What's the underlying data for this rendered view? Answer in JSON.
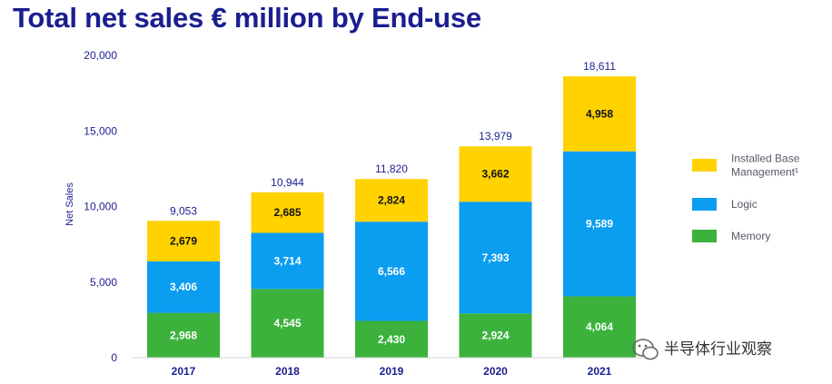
{
  "title": "Total net sales € million by End-use",
  "chart_data": {
    "type": "bar",
    "stacked": true,
    "title": "Total net sales € million by End-use",
    "xlabel": "",
    "ylabel": "Net Sales",
    "ylim": [
      0,
      20000
    ],
    "yticks": [
      "0",
      "5,000",
      "10,000",
      "15,000",
      "20,000"
    ],
    "categories": [
      "2017",
      "2018",
      "2019",
      "2020",
      "2021"
    ],
    "series": [
      {
        "name": "Memory",
        "color": "#3cb23c",
        "label_color": "#ffffff",
        "values": [
          2968,
          4545,
          2430,
          2924,
          4064
        ],
        "labels": [
          "2,968",
          "4,545",
          "2,430",
          "2,924",
          "4,064"
        ]
      },
      {
        "name": "Logic",
        "color": "#0a9df0",
        "label_color": "#ffffff",
        "values": [
          3406,
          3714,
          6566,
          7393,
          9589
        ],
        "labels": [
          "3,406",
          "3,714",
          "6,566",
          "7,393",
          "9,589"
        ]
      },
      {
        "name": "Installed Base Management",
        "name_lines": [
          "Installed Base",
          "Management¹"
        ],
        "color": "#ffd200",
        "label_color": "#111111",
        "values": [
          2679,
          2685,
          2824,
          3662,
          4958
        ],
        "labels": [
          "2,679",
          "2,685",
          "2,824",
          "3,662",
          "4,958"
        ]
      }
    ],
    "totals": [
      9053,
      10944,
      11820,
      13979,
      18611
    ],
    "total_labels": [
      "9,053",
      "10,944",
      "11,820",
      "13,979",
      "18,611"
    ],
    "legend": {
      "placement": "right",
      "order": [
        "Installed Base Management",
        "Logic",
        "Memory"
      ]
    },
    "grid": false
  },
  "watermark": {
    "text": "半导体行业观察",
    "icon": "wechat-icon"
  }
}
